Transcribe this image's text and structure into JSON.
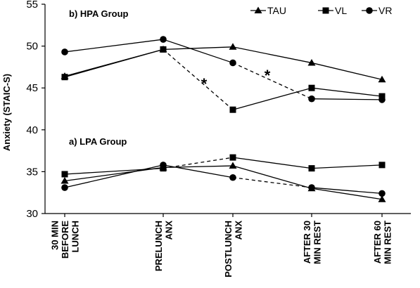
{
  "chart_data": {
    "type": "line",
    "ylabel": "Anxiety (STAIC-S)",
    "ylim": [
      30,
      55
    ],
    "yticks": [
      "30",
      "35",
      "40",
      "45",
      "50",
      "55"
    ],
    "categories": [
      [
        "30 MIN",
        "BEFORE",
        "LUNCH"
      ],
      [
        "PRELUNCH",
        "ANX"
      ],
      [
        "POSTLUNCH",
        "ANX"
      ],
      [
        "AFTER 30",
        "MIN REST"
      ],
      [
        "AFTER 60",
        "MIN REST"
      ]
    ],
    "legend": {
      "position": "top-right",
      "entries": [
        "TAU",
        "VL",
        "VR"
      ]
    },
    "grid": false,
    "panels": [
      {
        "label": "b)  HPA Group",
        "series": [
          {
            "name": "TAU",
            "marker": "triangle",
            "values": [
              46.4,
              49.6,
              49.9,
              48.0,
              46.0
            ],
            "dashed_segments": []
          },
          {
            "name": "VL",
            "marker": "square",
            "values": [
              46.3,
              49.6,
              42.4,
              45.0,
              44.0
            ],
            "dashed_segments": [
              1
            ]
          },
          {
            "name": "VR",
            "marker": "circle",
            "values": [
              49.3,
              50.8,
              48.0,
              43.7,
              43.6
            ],
            "dashed_segments": [
              2
            ]
          }
        ],
        "annotations": [
          "*",
          "*"
        ]
      },
      {
        "label": "a)   LPA Group",
        "series": [
          {
            "name": "TAU",
            "marker": "triangle",
            "values": [
              33.9,
              35.5,
              35.7,
              33.0,
              31.7
            ],
            "dashed_segments": []
          },
          {
            "name": "VL",
            "marker": "square",
            "values": [
              34.7,
              35.4,
              36.7,
              35.4,
              35.8
            ],
            "dashed_segments": [
              1
            ]
          },
          {
            "name": "VR",
            "marker": "circle",
            "values": [
              33.1,
              35.8,
              34.3,
              33.1,
              32.4
            ],
            "dashed_segments": [
              2
            ]
          }
        ],
        "annotations": []
      }
    ]
  }
}
